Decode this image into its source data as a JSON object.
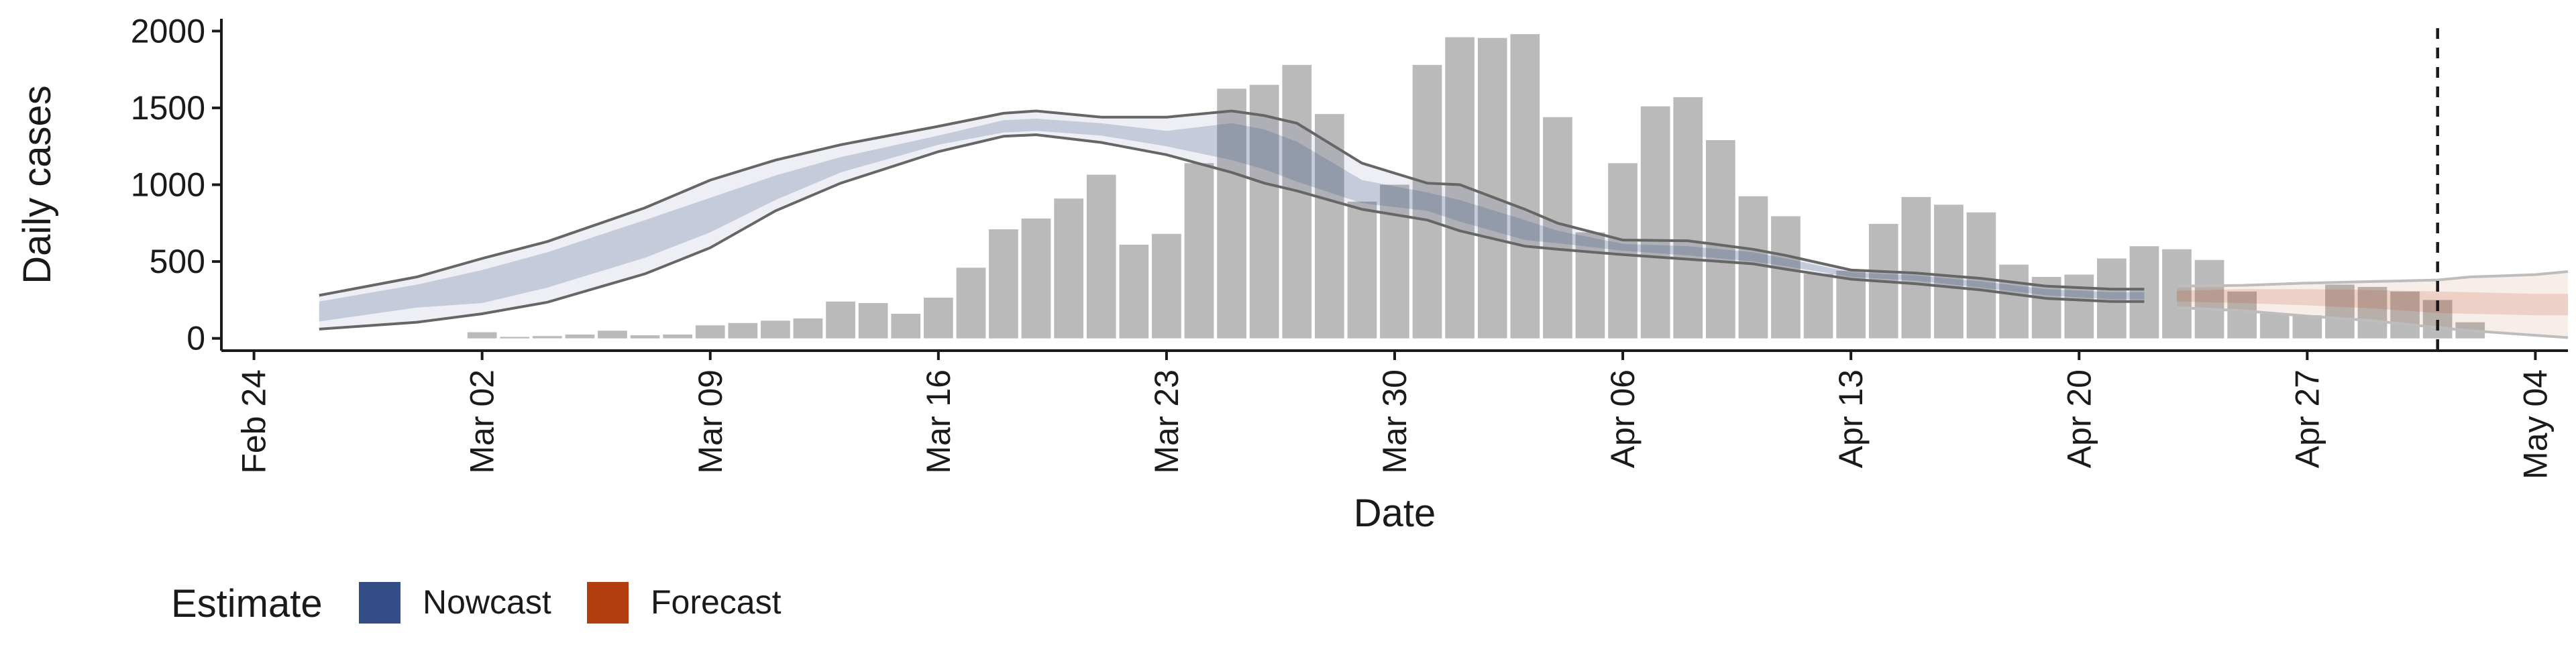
{
  "chart_data": {
    "type": "bar",
    "xlabel": "Date",
    "ylabel": "Daily cases",
    "x_ticks": [
      "Feb 24",
      "Mar 02",
      "Mar 09",
      "Mar 16",
      "Mar 23",
      "Mar 30",
      "Apr 06",
      "Apr 13",
      "Apr 20",
      "Apr 27",
      "May 04"
    ],
    "y_ticks": [
      0,
      500,
      1000,
      1500,
      2000
    ],
    "ylim": [
      -80,
      2080
    ],
    "xlim_days": [
      -1,
      71
    ],
    "grid": false,
    "vline_date": "May 01",
    "legend": {
      "title": "Estimate",
      "position": "bottom-left",
      "items": [
        {
          "label": "Nowcast",
          "color": "#354d86"
        },
        {
          "label": "Forecast",
          "color": "#b33e10"
        }
      ]
    },
    "colors": {
      "bars": "#bababa",
      "nowcast": "#354d86",
      "forecast": "#b33e10",
      "outline": "#666666",
      "forecast_outline": "#bdbdbd"
    },
    "dates_start": "Feb 24",
    "bars": [
      {
        "date": "Mar 02",
        "value": 40
      },
      {
        "date": "Mar 03",
        "value": 10
      },
      {
        "date": "Mar 04",
        "value": 15
      },
      {
        "date": "Mar 05",
        "value": 25
      },
      {
        "date": "Mar 06",
        "value": 50
      },
      {
        "date": "Mar 07",
        "value": 20
      },
      {
        "date": "Mar 08",
        "value": 25
      },
      {
        "date": "Mar 09",
        "value": 85
      },
      {
        "date": "Mar 10",
        "value": 100
      },
      {
        "date": "Mar 11",
        "value": 115
      },
      {
        "date": "Mar 12",
        "value": 130
      },
      {
        "date": "Mar 13",
        "value": 240
      },
      {
        "date": "Mar 14",
        "value": 230
      },
      {
        "date": "Mar 15",
        "value": 160
      },
      {
        "date": "Mar 16",
        "value": 265
      },
      {
        "date": "Mar 17",
        "value": 460
      },
      {
        "date": "Mar 18",
        "value": 710
      },
      {
        "date": "Mar 19",
        "value": 780
      },
      {
        "date": "Mar 20",
        "value": 910
      },
      {
        "date": "Mar 21",
        "value": 1065
      },
      {
        "date": "Mar 22",
        "value": 610
      },
      {
        "date": "Mar 23",
        "value": 680
      },
      {
        "date": "Mar 24",
        "value": 1140
      },
      {
        "date": "Mar 25",
        "value": 1625
      },
      {
        "date": "Mar 26",
        "value": 1650
      },
      {
        "date": "Mar 27",
        "value": 1780
      },
      {
        "date": "Mar 28",
        "value": 1460
      },
      {
        "date": "Mar 29",
        "value": 890
      },
      {
        "date": "Mar 30",
        "value": 1000
      },
      {
        "date": "Mar 31",
        "value": 1780
      },
      {
        "date": "Apr 01",
        "value": 1960
      },
      {
        "date": "Apr 02",
        "value": 1955
      },
      {
        "date": "Apr 03",
        "value": 1980
      },
      {
        "date": "Apr 04",
        "value": 1440
      },
      {
        "date": "Apr 05",
        "value": 690
      },
      {
        "date": "Apr 06",
        "value": 1140
      },
      {
        "date": "Apr 07",
        "value": 1510
      },
      {
        "date": "Apr 08",
        "value": 1570
      },
      {
        "date": "Apr 09",
        "value": 1290
      },
      {
        "date": "Apr 10",
        "value": 925
      },
      {
        "date": "Apr 11",
        "value": 795
      },
      {
        "date": "Apr 12",
        "value": 420
      },
      {
        "date": "Apr 13",
        "value": 440
      },
      {
        "date": "Apr 14",
        "value": 745
      },
      {
        "date": "Apr 15",
        "value": 920
      },
      {
        "date": "Apr 16",
        "value": 870
      },
      {
        "date": "Apr 17",
        "value": 820
      },
      {
        "date": "Apr 18",
        "value": 480
      },
      {
        "date": "Apr 19",
        "value": 400
      },
      {
        "date": "Apr 20",
        "value": 415
      },
      {
        "date": "Apr 21",
        "value": 520
      },
      {
        "date": "Apr 22",
        "value": 600
      },
      {
        "date": "Apr 23",
        "value": 580
      },
      {
        "date": "Apr 24",
        "value": 510
      },
      {
        "date": "Apr 25",
        "value": 305
      },
      {
        "date": "Apr 26",
        "value": 160
      },
      {
        "date": "Apr 27",
        "value": 150
      },
      {
        "date": "Apr 28",
        "value": 350
      },
      {
        "date": "Apr 29",
        "value": 335
      },
      {
        "date": "Apr 30",
        "value": 305
      },
      {
        "date": "May 01",
        "value": 250
      },
      {
        "date": "May 02",
        "value": 105
      }
    ],
    "nowcast": [
      {
        "date": "Feb 26",
        "outer_lower": 60,
        "inner_lower": 110,
        "inner_upper": 240,
        "outer_upper": 280
      },
      {
        "date": "Feb 29",
        "outer_lower": 105,
        "inner_lower": 200,
        "inner_upper": 350,
        "outer_upper": 400
      },
      {
        "date": "Mar 02",
        "outer_lower": 160,
        "inner_lower": 230,
        "inner_upper": 445,
        "outer_upper": 520
      },
      {
        "date": "Mar 04",
        "outer_lower": 235,
        "inner_lower": 330,
        "inner_upper": 560,
        "outer_upper": 630
      },
      {
        "date": "Mar 07",
        "outer_lower": 420,
        "inner_lower": 525,
        "inner_upper": 770,
        "outer_upper": 850
      },
      {
        "date": "Mar 09",
        "outer_lower": 590,
        "inner_lower": 690,
        "inner_upper": 915,
        "outer_upper": 1030
      },
      {
        "date": "Mar 11",
        "outer_lower": 830,
        "inner_lower": 900,
        "inner_upper": 1060,
        "outer_upper": 1160
      },
      {
        "date": "Mar 13",
        "outer_lower": 1010,
        "inner_lower": 1080,
        "inner_upper": 1180,
        "outer_upper": 1260
      },
      {
        "date": "Mar 16",
        "outer_lower": 1215,
        "inner_lower": 1260,
        "inner_upper": 1320,
        "outer_upper": 1380
      },
      {
        "date": "Mar 18",
        "outer_lower": 1315,
        "inner_lower": 1340,
        "inner_upper": 1420,
        "outer_upper": 1465
      },
      {
        "date": "Mar 19",
        "outer_lower": 1325,
        "inner_lower": 1350,
        "inner_upper": 1430,
        "outer_upper": 1480
      },
      {
        "date": "Mar 21",
        "outer_lower": 1275,
        "inner_lower": 1320,
        "inner_upper": 1400,
        "outer_upper": 1440
      },
      {
        "date": "Mar 23",
        "outer_lower": 1195,
        "inner_lower": 1250,
        "inner_upper": 1350,
        "outer_upper": 1440
      },
      {
        "date": "Mar 25",
        "outer_lower": 1080,
        "inner_lower": 1160,
        "inner_upper": 1400,
        "outer_upper": 1480
      },
      {
        "date": "Mar 26",
        "outer_lower": 1010,
        "inner_lower": 1100,
        "inner_upper": 1360,
        "outer_upper": 1450
      },
      {
        "date": "Mar 27",
        "outer_lower": 960,
        "inner_lower": 1020,
        "inner_upper": 1280,
        "outer_upper": 1400
      },
      {
        "date": "Mar 29",
        "outer_lower": 840,
        "inner_lower": 880,
        "inner_upper": 1030,
        "outer_upper": 1140
      },
      {
        "date": "Mar 31",
        "outer_lower": 770,
        "inner_lower": 830,
        "inner_upper": 950,
        "outer_upper": 1010
      },
      {
        "date": "Apr 01",
        "outer_lower": 700,
        "inner_lower": 760,
        "inner_upper": 900,
        "outer_upper": 1000
      },
      {
        "date": "Apr 03",
        "outer_lower": 600,
        "inner_lower": 640,
        "inner_upper": 770,
        "outer_upper": 840
      },
      {
        "date": "Apr 04",
        "outer_lower": 580,
        "inner_lower": 620,
        "inner_upper": 700,
        "outer_upper": 750
      },
      {
        "date": "Apr 06",
        "outer_lower": 545,
        "inner_lower": 570,
        "inner_upper": 615,
        "outer_upper": 640
      },
      {
        "date": "Apr 08",
        "outer_lower": 515,
        "inner_lower": 540,
        "inner_upper": 600,
        "outer_upper": 635
      },
      {
        "date": "Apr 10",
        "outer_lower": 485,
        "inner_lower": 500,
        "inner_upper": 560,
        "outer_upper": 580
      },
      {
        "date": "Apr 11",
        "outer_lower": 450,
        "inner_lower": 470,
        "inner_upper": 520,
        "outer_upper": 540
      },
      {
        "date": "Apr 13",
        "outer_lower": 385,
        "inner_lower": 400,
        "inner_upper": 430,
        "outer_upper": 445
      },
      {
        "date": "Apr 15",
        "outer_lower": 355,
        "inner_lower": 375,
        "inner_upper": 410,
        "outer_upper": 425
      },
      {
        "date": "Apr 17",
        "outer_lower": 315,
        "inner_lower": 330,
        "inner_upper": 370,
        "outer_upper": 390
      },
      {
        "date": "Apr 19",
        "outer_lower": 260,
        "inner_lower": 280,
        "inner_upper": 320,
        "outer_upper": 340
      },
      {
        "date": "Apr 21",
        "outer_lower": 240,
        "inner_lower": 255,
        "inner_upper": 300,
        "outer_upper": 320
      },
      {
        "date": "Apr 22",
        "outer_lower": 240,
        "inner_lower": 255,
        "inner_upper": 300,
        "outer_upper": 320
      }
    ],
    "forecast": [
      {
        "date": "Apr 23",
        "outer_lower": 200,
        "inner_lower": 240,
        "inner_upper": 310,
        "outer_upper": 340
      },
      {
        "date": "Apr 25",
        "outer_lower": 180,
        "inner_lower": 230,
        "inner_upper": 320,
        "outer_upper": 345
      },
      {
        "date": "Apr 27",
        "outer_lower": 145,
        "inner_lower": 215,
        "inner_upper": 320,
        "outer_upper": 360
      },
      {
        "date": "Apr 29",
        "outer_lower": 115,
        "inner_lower": 195,
        "inner_upper": 315,
        "outer_upper": 370
      },
      {
        "date": "May 01",
        "outer_lower": 70,
        "inner_lower": 165,
        "inner_upper": 305,
        "outer_upper": 380
      },
      {
        "date": "May 02",
        "outer_lower": 50,
        "inner_lower": 160,
        "inner_upper": 300,
        "outer_upper": 400
      },
      {
        "date": "May 04",
        "outer_lower": 20,
        "inner_lower": 150,
        "inner_upper": 290,
        "outer_upper": 415
      },
      {
        "date": "May 05",
        "outer_lower": 5,
        "inner_lower": 150,
        "inner_upper": 290,
        "outer_upper": 435
      }
    ]
  }
}
